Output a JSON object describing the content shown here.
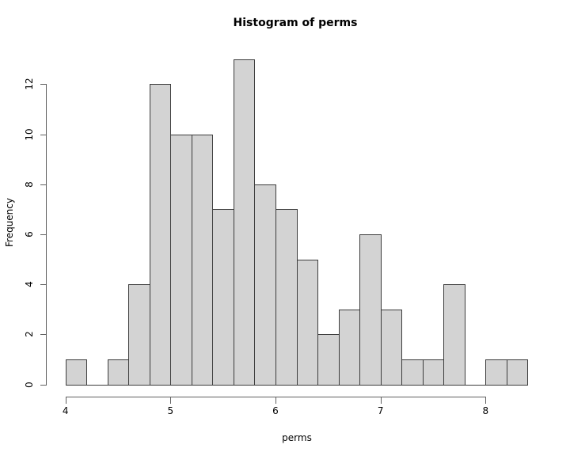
{
  "chart_data": {
    "type": "bar",
    "subtype": "histogram",
    "title": "Histogram of perms",
    "xlabel": "perms",
    "ylabel": "Frequency",
    "bin_edges": [
      4.0,
      4.2,
      4.4,
      4.6,
      4.8,
      5.0,
      5.2,
      5.4,
      5.6,
      5.8,
      6.0,
      6.2,
      6.4,
      6.6,
      6.8,
      7.0,
      7.2,
      7.4,
      7.6,
      7.8,
      8.0,
      8.2,
      8.4
    ],
    "counts": [
      1,
      0,
      1,
      4,
      12,
      10,
      10,
      7,
      13,
      8,
      7,
      5,
      2,
      3,
      6,
      3,
      1,
      1,
      4,
      0,
      1,
      1
    ],
    "x_ticks": [
      4,
      5,
      6,
      7,
      8
    ],
    "y_ticks": [
      0,
      2,
      4,
      6,
      8,
      10,
      12
    ],
    "xlim": [
      4.0,
      8.4
    ],
    "ylim": [
      0,
      13
    ],
    "grid": false,
    "legend": "none",
    "bar_fill": "#d3d3d3",
    "bar_border": "#3c3c3c",
    "axis_color": "#606060",
    "text_color": "#000000",
    "background": "#ffffff"
  }
}
